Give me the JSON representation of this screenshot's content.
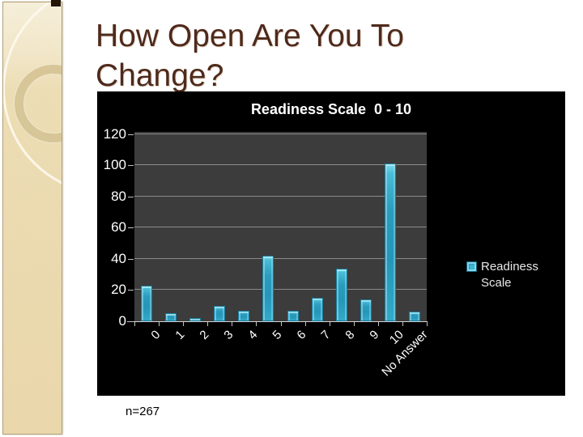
{
  "slide": {
    "title_line1": "How Open Are You To",
    "title_line2": "Change?",
    "footnote": "n=267"
  },
  "chart": {
    "title": "Readiness Scale  0 - 10",
    "legend_label": "Readiness Scale"
  },
  "colors": {
    "bar": "#2fa8c7",
    "chart_background": "#000000",
    "plot_background": "#3c3c3c",
    "gridline": "#8a8a8a",
    "chart_text": "#ffffff",
    "slide_title": "#4e2a1b",
    "sidebar": "#ecdcb2"
  },
  "chart_data": {
    "type": "bar",
    "title": "Readiness Scale  0 - 10",
    "categories": [
      "0",
      "1",
      "2",
      "3",
      "4",
      "5",
      "6",
      "7",
      "8",
      "9",
      "10",
      "No Answer"
    ],
    "values": [
      23,
      5,
      2,
      10,
      7,
      42,
      7,
      15,
      34,
      14,
      101,
      6
    ],
    "series": [
      {
        "name": "Readiness Scale",
        "values": [
          23,
          5,
          2,
          10,
          7,
          42,
          7,
          15,
          34,
          14,
          101,
          6
        ]
      }
    ],
    "xlabel": "",
    "ylabel": "",
    "ylim": [
      0,
      120
    ],
    "yticks": [
      0,
      20,
      40,
      60,
      80,
      100,
      120
    ],
    "grid": true,
    "legend": [
      "Readiness Scale"
    ],
    "legend_position": "right",
    "annotation": "n=267"
  }
}
